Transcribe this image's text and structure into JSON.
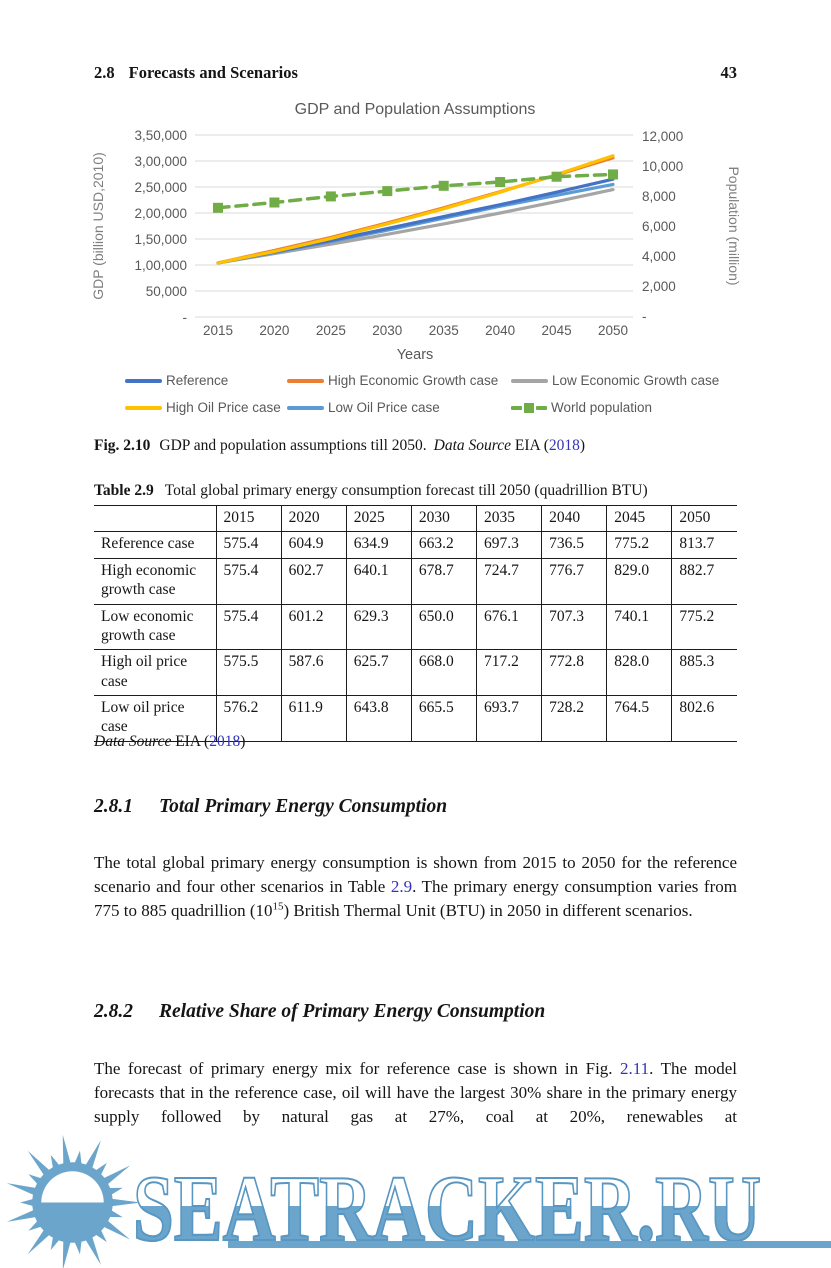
{
  "page": {
    "header_left_number": "2.8",
    "header_left_title": "Forecasts and Scenarios",
    "page_number": "43"
  },
  "colors": {
    "link": "#3333bb",
    "chart_text": "#595959",
    "chart_axis_title": "#7f7f7f",
    "gridline": "#d9d9d9",
    "body_text": "#151515",
    "watermark_blue": "#6BA5CB"
  },
  "chart_data": {
    "type": "line",
    "title": "GDP and Population Assumptions",
    "xlabel": "Years",
    "ylabel_left": "GDP (billion USD,2010)",
    "ylabel_right": "Population (million)",
    "x": [
      2015,
      2020,
      2025,
      2030,
      2035,
      2040,
      2045,
      2050
    ],
    "x_tick_labels": [
      "2015",
      "2020",
      "2025",
      "2030",
      "2035",
      "2040",
      "2045",
      "2050"
    ],
    "left_axis": {
      "min": 0,
      "max": 350000,
      "ticks": [
        "3,50,000",
        "3,00,000",
        "2,50,000",
        "2,00,000",
        "1,50,000",
        "1,00,000",
        "50,000",
        "-"
      ]
    },
    "right_axis": {
      "min": 0,
      "max": 12000,
      "ticks": [
        "12,000",
        "10,000",
        "8,000",
        "6,000",
        "4,000",
        "2,000",
        "-"
      ]
    },
    "grid": true,
    "legend_position": "bottom",
    "series": [
      {
        "name": "Low Economic Growth case",
        "color": "#A5A5A5",
        "axis": "left",
        "style": "solid",
        "values": [
          104000,
          122000,
          140000,
          159000,
          179000,
          200000,
          222000,
          245000
        ]
      },
      {
        "name": "Low Oil Price case",
        "color": "#5B9BD5",
        "axis": "left",
        "style": "solid",
        "values": [
          104000,
          124000,
          145000,
          167000,
          190000,
          213000,
          234000,
          255000
        ]
      },
      {
        "name": "Reference",
        "color": "#4472C4",
        "axis": "left",
        "style": "solid",
        "values": [
          104000,
          125000,
          147000,
          170000,
          193000,
          216000,
          240000,
          265000
        ]
      },
      {
        "name": "High Economic Growth case",
        "color": "#ED7D31",
        "axis": "left",
        "style": "solid",
        "values": [
          104000,
          128000,
          153000,
          181000,
          210000,
          241000,
          273000,
          306000
        ]
      },
      {
        "name": "High Oil Price case",
        "color": "#FFC000",
        "axis": "left",
        "style": "solid",
        "values": [
          104000,
          126000,
          151000,
          179000,
          208000,
          240000,
          274000,
          310000
        ]
      },
      {
        "name": "World population",
        "color": "#70AD47",
        "axis": "right",
        "style": "dashed-square",
        "values": [
          7200,
          7550,
          7950,
          8300,
          8650,
          8900,
          9250,
          9400
        ]
      }
    ],
    "legend_order": [
      "Reference",
      "High Economic Growth case",
      "Low Economic Growth case",
      "High Oil Price case",
      "Low Oil Price case",
      "World population"
    ]
  },
  "figure_caption": {
    "segments": [
      {
        "text": "Fig. 2.10",
        "style": "label"
      },
      {
        "text": "GDP and population assumptions till 2050.",
        "style": "plain"
      },
      {
        "text": "Data Source",
        "style": "italic-gap"
      },
      {
        "text": " EIA (",
        "style": "plain"
      },
      {
        "text": "2018",
        "style": "link"
      },
      {
        "text": ")",
        "style": "plain"
      }
    ]
  },
  "table": {
    "title_label": "Table 2.9",
    "title_text": "Total global primary energy consumption forecast till 2050 (quadrillion BTU)",
    "columns": [
      "",
      "2015",
      "2020",
      "2025",
      "2030",
      "2035",
      "2040",
      "2045",
      "2050"
    ],
    "rows": [
      {
        "label": "Reference case",
        "values": [
          "575.4",
          "604.9",
          "634.9",
          "663.2",
          "697.3",
          "736.5",
          "775.2",
          "813.7"
        ]
      },
      {
        "label": "High economic growth case",
        "values": [
          "575.4",
          "602.7",
          "640.1",
          "678.7",
          "724.7",
          "776.7",
          "829.0",
          "882.7"
        ]
      },
      {
        "label": "Low economic growth case",
        "values": [
          "575.4",
          "601.2",
          "629.3",
          "650.0",
          "676.1",
          "707.3",
          "740.1",
          "775.2"
        ]
      },
      {
        "label": "High oil price case",
        "values": [
          "575.5",
          "587.6",
          "625.7",
          "668.0",
          "717.2",
          "772.8",
          "828.0",
          "885.3"
        ]
      },
      {
        "label": "Low oil price case",
        "values": [
          "576.2",
          "611.9",
          "643.8",
          "665.5",
          "693.7",
          "728.2",
          "764.5",
          "802.6"
        ]
      }
    ],
    "source_segments": [
      {
        "text": "Data Source",
        "style": "italic"
      },
      {
        "text": " EIA (",
        "style": "plain"
      },
      {
        "text": "2018",
        "style": "link"
      },
      {
        "text": ")",
        "style": "plain"
      }
    ]
  },
  "sections": [
    {
      "number": "2.8.1",
      "title": "Total Primary Energy Consumption",
      "paragraph_segments": [
        {
          "text": "The total global primary energy consumption is shown from 2015 to 2050 for the reference scenario and four other scenarios in Table ",
          "style": "plain"
        },
        {
          "text": "2.9",
          "style": "link"
        },
        {
          "text": ". The primary energy consumption varies from 775 to 885 quadrillion (10",
          "style": "plain"
        },
        {
          "text": "15",
          "style": "sup"
        },
        {
          "text": ") British Thermal Unit (BTU) in 2050 in different scenarios.",
          "style": "plain"
        }
      ]
    },
    {
      "number": "2.8.2",
      "title": "Relative Share of Primary Energy Consumption",
      "paragraph_segments": [
        {
          "text": "The forecast of primary energy mix for reference case is shown in Fig. ",
          "style": "plain"
        },
        {
          "text": "2.11",
          "style": "link"
        },
        {
          "text": ". The model forecasts that in the reference case, oil will have the largest 30% share in the primary energy supply followed by natural gas at 27%, coal at 20%, renewables at",
          "style": "plain"
        }
      ]
    }
  ],
  "watermark": {
    "text": "SEATRACKER.RU",
    "icon": "sun-over-sea-icon"
  }
}
